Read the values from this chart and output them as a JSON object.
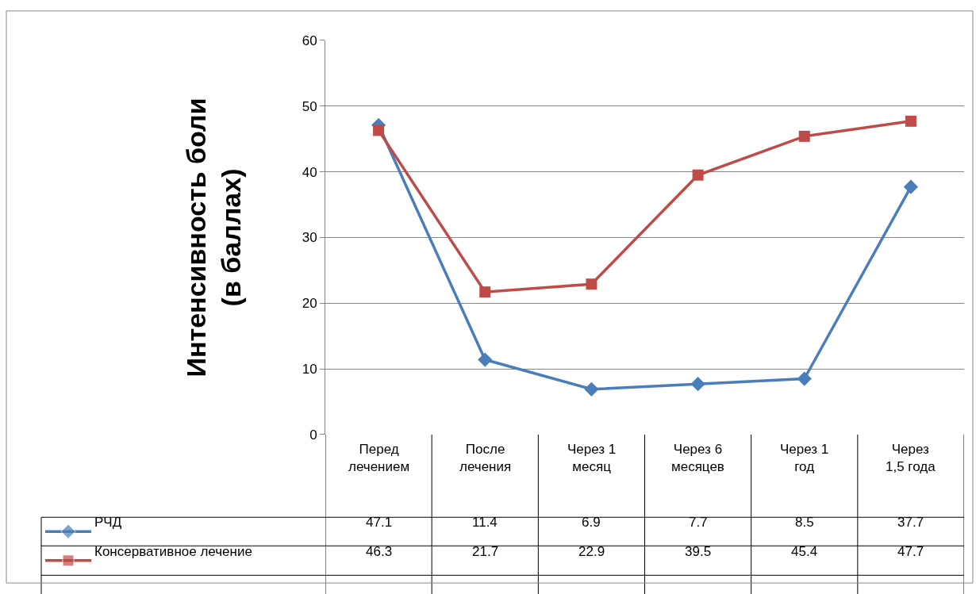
{
  "chart_data": {
    "type": "line",
    "ylabel": "Интенсивность боли\n(в баллах)",
    "categories": [
      "Перед лечением",
      "После лечения",
      "Через 1 месяц",
      "Через 6 месяцев",
      "Через 1 год",
      "Через 1,5 года"
    ],
    "series": [
      {
        "name": "РЧД",
        "color": "#4a7ebb",
        "marker": "diamond",
        "values": [
          47.1,
          11.4,
          6.9,
          7.7,
          8.5,
          37.7
        ]
      },
      {
        "name": "Консервативное лечение",
        "color": "#be4b48",
        "marker": "square",
        "values": [
          46.3,
          21.7,
          22.9,
          39.5,
          45.4,
          47.7
        ]
      }
    ],
    "ylim": [
      0,
      60
    ],
    "yticks": [
      0,
      10,
      20,
      30,
      40,
      50,
      60
    ],
    "grid": "y",
    "data_labels": true,
    "legend": "bottom",
    "tick_labels": "y",
    "line_style": "solid"
  }
}
